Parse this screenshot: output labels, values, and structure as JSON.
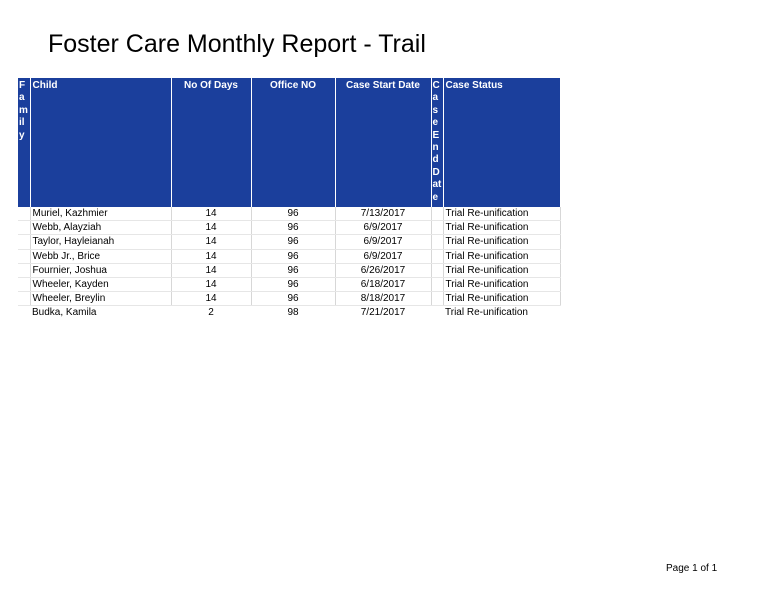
{
  "report": {
    "title": "Foster Care Monthly Report - Trail"
  },
  "table": {
    "headers": {
      "family": "Family",
      "child": "Child",
      "no_of_days": "No Of Days",
      "office_no": "Office NO",
      "case_start_date": "Case Start Date",
      "case_end_date": "CaseEndDate",
      "case_status": "Case Status"
    },
    "rows": [
      {
        "family": "",
        "child": "Muriel, Kazhmier",
        "no_of_days": "14",
        "office_no": "96",
        "case_start_date": "7/13/2017",
        "case_end_date": "",
        "case_status": "Trial Re-unification"
      },
      {
        "family": "",
        "child": "Webb, Alayziah",
        "no_of_days": "14",
        "office_no": "96",
        "case_start_date": "6/9/2017",
        "case_end_date": "",
        "case_status": "Trial Re-unification"
      },
      {
        "family": "",
        "child": "Taylor, Hayleianah",
        "no_of_days": "14",
        "office_no": "96",
        "case_start_date": "6/9/2017",
        "case_end_date": "",
        "case_status": "Trial Re-unification"
      },
      {
        "family": "",
        "child": "Webb Jr., Brice",
        "no_of_days": "14",
        "office_no": "96",
        "case_start_date": "6/9/2017",
        "case_end_date": "",
        "case_status": "Trial Re-unification"
      },
      {
        "family": "",
        "child": "Fournier, Joshua",
        "no_of_days": "14",
        "office_no": "96",
        "case_start_date": "6/26/2017",
        "case_end_date": "",
        "case_status": "Trial Re-unification"
      },
      {
        "family": "",
        "child": "Wheeler, Kayden",
        "no_of_days": "14",
        "office_no": "96",
        "case_start_date": "6/18/2017",
        "case_end_date": "",
        "case_status": "Trial Re-unification"
      },
      {
        "family": "",
        "child": "Wheeler, Breylin",
        "no_of_days": "14",
        "office_no": "96",
        "case_start_date": "8/18/2017",
        "case_end_date": "",
        "case_status": "Trial Re-unification"
      },
      {
        "family": "",
        "child": "Budka, Kamila",
        "no_of_days": "2",
        "office_no": "98",
        "case_start_date": "7/21/2017",
        "case_end_date": "",
        "case_status": "Trial Re-unification"
      }
    ]
  },
  "footer": {
    "page_label": "Page 1 of 1"
  }
}
